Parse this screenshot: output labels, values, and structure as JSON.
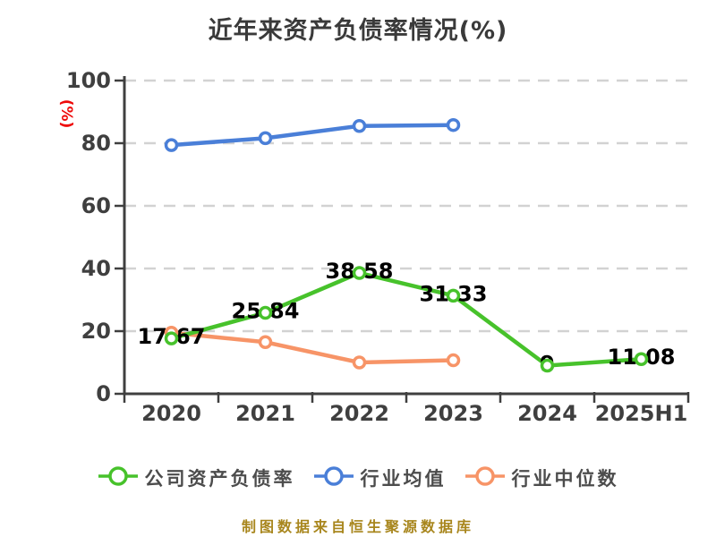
{
  "chart_data": {
    "type": "line",
    "title": "近年来资产负债率情况(%)",
    "ylabel": "(%)",
    "footer": "制图数据来自恒生聚源数据库",
    "categories": [
      "2020",
      "2021",
      "2022",
      "2023",
      "2024",
      "2025H1"
    ],
    "series": [
      {
        "name": "公司资产负债率",
        "color": "#47c22b",
        "values": [
          17.67,
          25.84,
          38.58,
          31.33,
          9,
          11.08
        ],
        "point_labels": [
          "17.67",
          "25.84",
          "38.58",
          "31.33",
          "9",
          "11.08"
        ]
      },
      {
        "name": "行业均值",
        "color": "#4a7fd8",
        "values": [
          79.4,
          81.6,
          85.5,
          85.8
        ],
        "point_labels": []
      },
      {
        "name": "行业中位数",
        "color": "#f79467",
        "values": [
          19.5,
          16.5,
          10,
          10.7
        ],
        "point_labels": []
      }
    ],
    "ylim": [
      0,
      100
    ],
    "yticks": [
      0,
      20,
      40,
      60,
      80,
      100
    ],
    "grid": "horizontal-dashed",
    "legend_position": "bottom",
    "colors": {
      "title": "#3a3a3a",
      "axis": "#3f3f3f",
      "tick_text": "#3f3f3f",
      "grid": "#d2d2d2",
      "data_label": "#000000",
      "ylabel": "#ee0a0a",
      "legend_text": "#4c4c4c",
      "footer": "#a8861d",
      "marker_fill": "#ffffff"
    }
  }
}
